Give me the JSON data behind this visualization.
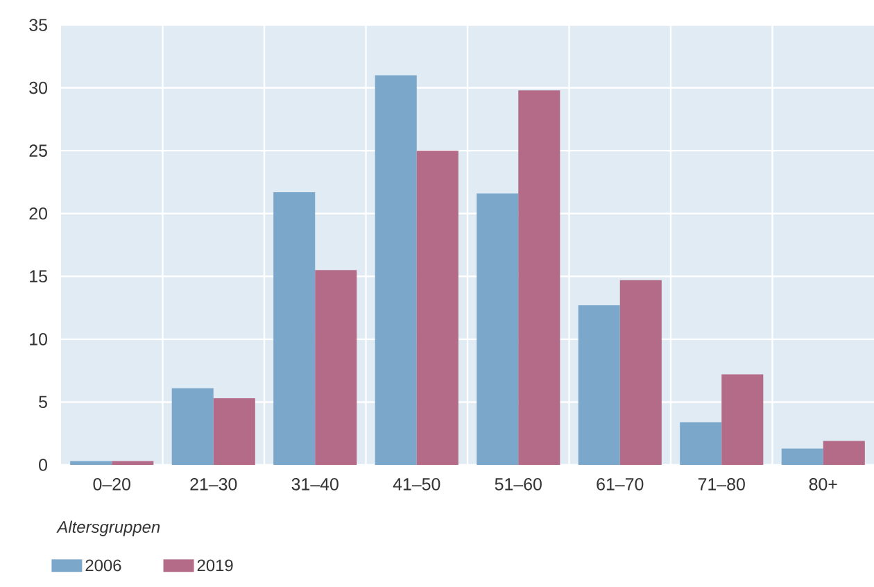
{
  "chart_data": {
    "type": "bar",
    "xlabel": "Altersgruppen",
    "categories": [
      "0–20",
      "21–30",
      "31–40",
      "41–50",
      "51–60",
      "61–70",
      "71–80",
      "80+"
    ],
    "series": [
      {
        "name": "2006",
        "color": "#7ba7cb",
        "values": [
          0.3,
          6.1,
          21.7,
          31.0,
          21.6,
          12.7,
          3.4,
          1.3
        ]
      },
      {
        "name": "2019",
        "color": "#b36b88",
        "values": [
          0.3,
          5.3,
          15.5,
          25.0,
          29.8,
          14.7,
          7.2,
          1.9
        ]
      }
    ],
    "ylim": [
      0,
      35
    ],
    "yticks": [
      0,
      5,
      10,
      15,
      20,
      25,
      30,
      35
    ],
    "grid": true,
    "legend": "bottom left"
  }
}
